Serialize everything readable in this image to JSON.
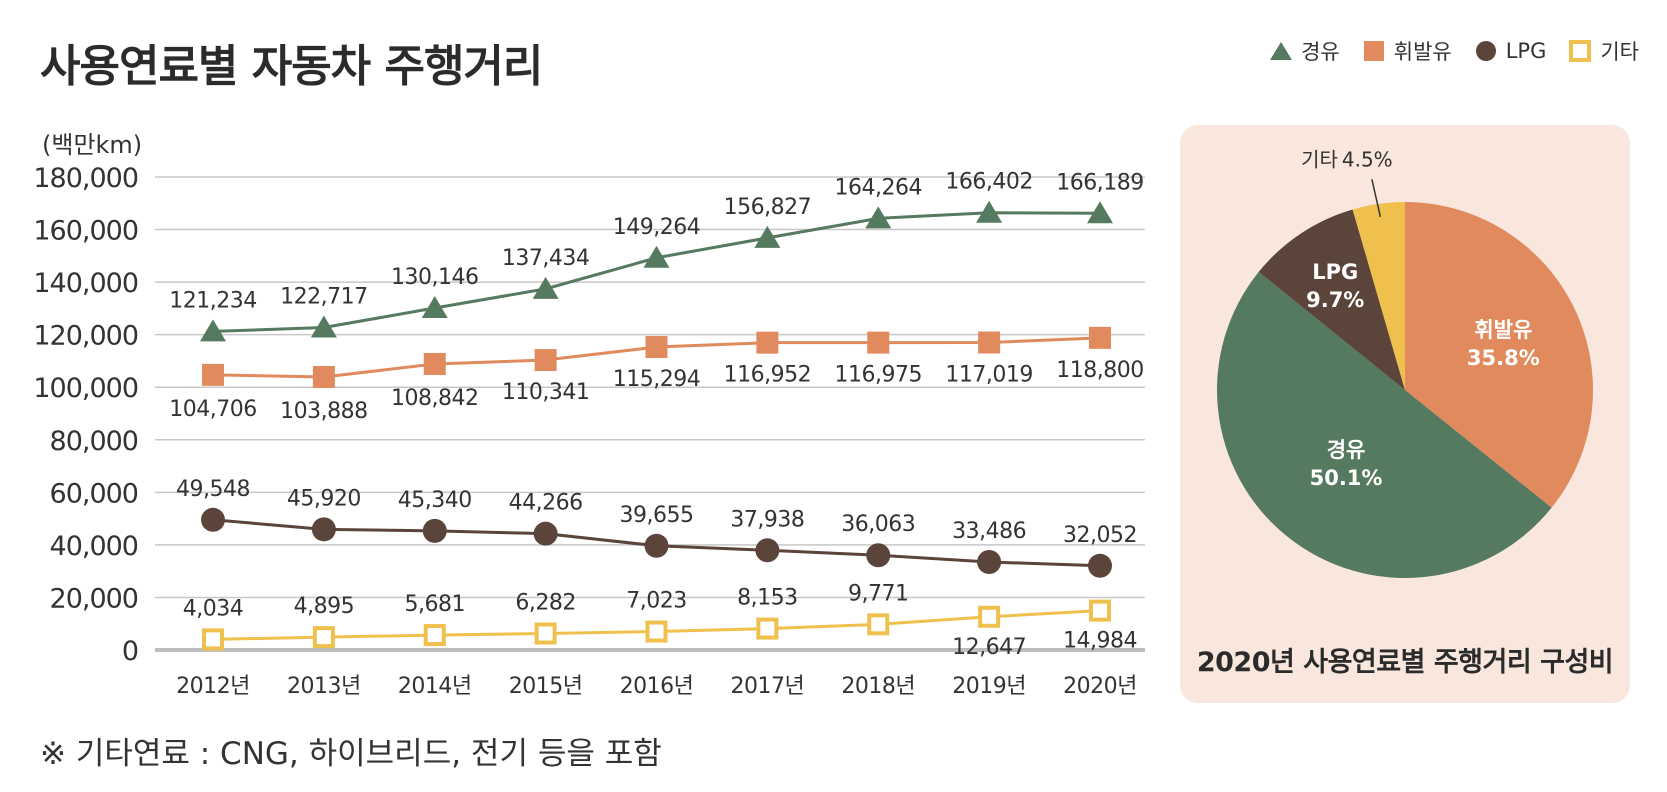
{
  "title": "사용연료별 자동차 주행거리",
  "footnote": "※ 기타연료 : CNG, 하이브리드, 전기 등을 포함",
  "colors": {
    "diesel": "#567a5f",
    "gasoline": "#e08a5e",
    "lpg": "#5b443a",
    "other": "#efc04d",
    "grid": "#c8c8c8",
    "panel": "#f9e6dd"
  },
  "legend": [
    {
      "label": "경유",
      "marker": "triangle",
      "color": "#567a5f"
    },
    {
      "label": "휘발유",
      "marker": "square",
      "color": "#e08a5e"
    },
    {
      "label": "LPG",
      "marker": "circle",
      "color": "#5b443a"
    },
    {
      "label": "기타",
      "marker": "open-square",
      "color": "#efc04d"
    }
  ],
  "chart_data": [
    {
      "type": "line",
      "ylabel": "(백만km)",
      "ylim": [
        0,
        180000
      ],
      "yticks": [
        "0",
        "20,000",
        "40,000",
        "60,000",
        "80,000",
        "100,000",
        "120,000",
        "140,000",
        "160,000",
        "180,000"
      ],
      "grid": true,
      "categories": [
        "2012년",
        "2013년",
        "2014년",
        "2015년",
        "2016년",
        "2017년",
        "2018년",
        "2019년",
        "2020년"
      ],
      "series": [
        {
          "name": "경유",
          "marker": "triangle",
          "color": "#567a5f",
          "values": [
            121234,
            122717,
            130146,
            137434,
            149264,
            156827,
            164264,
            166402,
            166189
          ],
          "labels": [
            "121,234",
            "122,717",
            "130,146",
            "137,434",
            "149,264",
            "156,827",
            "164,264",
            "166,402",
            "166,189"
          ]
        },
        {
          "name": "휘발유",
          "marker": "square",
          "color": "#e08a5e",
          "values": [
            104706,
            103888,
            108842,
            110341,
            115294,
            116952,
            116975,
            117019,
            118800
          ],
          "labels": [
            "104,706",
            "103,888",
            "108,842",
            "110,341",
            "115,294",
            "116,952",
            "116,975",
            "117,019",
            "118,800"
          ]
        },
        {
          "name": "LPG",
          "marker": "circle",
          "color": "#5b443a",
          "values": [
            49548,
            45920,
            45340,
            44266,
            39655,
            37938,
            36063,
            33486,
            32052
          ],
          "labels": [
            "49,548",
            "45,920",
            "45,340",
            "44,266",
            "39,655",
            "37,938",
            "36,063",
            "33,486",
            "32,052"
          ]
        },
        {
          "name": "기타",
          "marker": "open-square",
          "color": "#efc04d",
          "values": [
            4034,
            4895,
            5681,
            6282,
            7023,
            8153,
            9771,
            12647,
            14984
          ],
          "labels": [
            "4,034",
            "4,895",
            "5,681",
            "6,282",
            "7,023",
            "8,153",
            "9,771",
            "12,647",
            "14,984"
          ]
        }
      ]
    },
    {
      "type": "pie",
      "title": "2020년 사용연료별 주행거리 구성비",
      "slices": [
        {
          "name": "휘발유",
          "value": 35.8,
          "label": "35.8%",
          "color": "#e08a5e"
        },
        {
          "name": "경유",
          "value": 50.1,
          "label": "50.1%",
          "color": "#567a5f"
        },
        {
          "name": "LPG",
          "value": 9.7,
          "label": "9.7%",
          "color": "#5b443a"
        },
        {
          "name": "기타",
          "value": 4.5,
          "label": "4.5%",
          "color": "#efc04d"
        }
      ]
    }
  ]
}
